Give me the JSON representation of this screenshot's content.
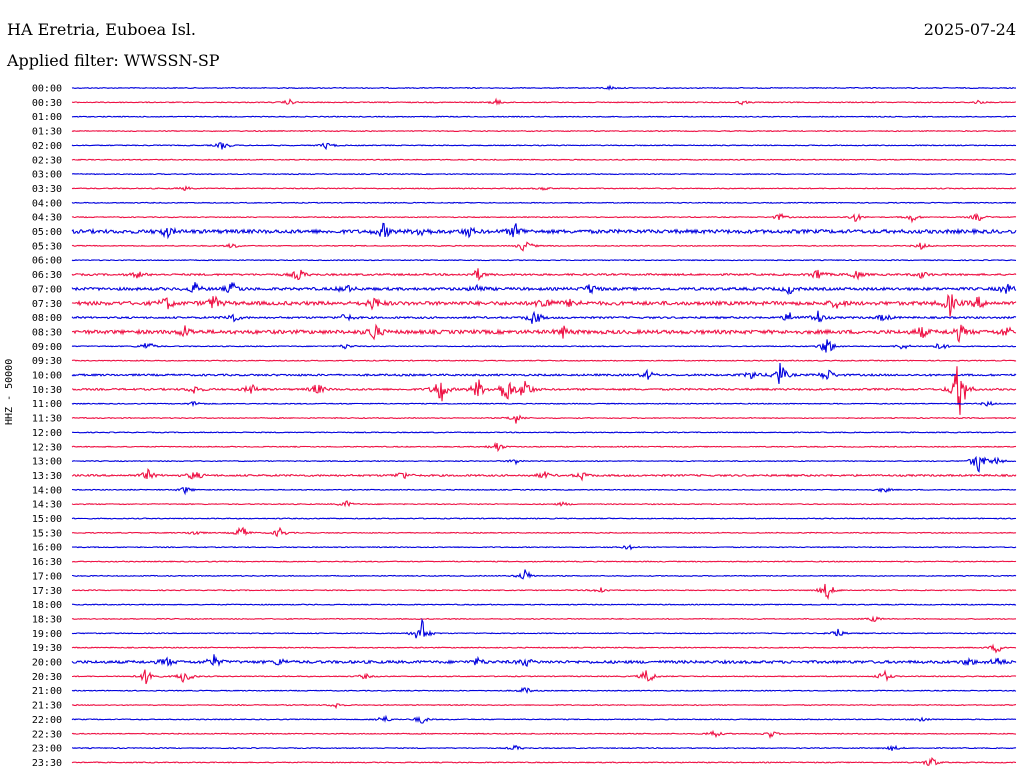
{
  "header": {
    "station": "HA Eretria, Euboea Isl.",
    "date": "2025-07-24",
    "filter_label": "Applied filter: WWSSN-SP"
  },
  "colors": {
    "even_row": "#0000dd",
    "odd_row": "#ee1144"
  },
  "chart_data": {
    "type": "line",
    "title": "HA Eretria, Euboea Isl.",
    "ylabel": "HHZ - 50000",
    "rows": [
      {
        "time": "00:00",
        "events": [
          {
            "t": 0.57,
            "a": 2
          }
        ]
      },
      {
        "time": "00:30",
        "events": [
          {
            "t": 0.23,
            "a": 3
          },
          {
            "t": 0.45,
            "a": 3
          },
          {
            "t": 0.71,
            "a": 2
          },
          {
            "t": 0.96,
            "a": 2
          }
        ]
      },
      {
        "time": "01:00",
        "events": []
      },
      {
        "time": "01:30",
        "events": []
      },
      {
        "time": "02:00",
        "events": [
          {
            "t": 0.16,
            "a": 5
          },
          {
            "t": 0.27,
            "a": 4
          }
        ]
      },
      {
        "time": "02:30",
        "events": []
      },
      {
        "time": "03:00",
        "events": []
      },
      {
        "time": "03:30",
        "events": [
          {
            "t": 0.12,
            "a": 2
          },
          {
            "t": 0.5,
            "a": 2
          }
        ]
      },
      {
        "time": "04:00",
        "events": []
      },
      {
        "time": "04:30",
        "events": [
          {
            "t": 0.75,
            "a": 4
          },
          {
            "t": 0.83,
            "a": 5
          },
          {
            "t": 0.89,
            "a": 5
          },
          {
            "t": 0.96,
            "a": 5
          }
        ]
      },
      {
        "time": "05:00",
        "noise": 4,
        "events": [
          {
            "t": 0.1,
            "a": 6
          },
          {
            "t": 0.33,
            "a": 8
          },
          {
            "t": 0.37,
            "a": 6
          },
          {
            "t": 0.42,
            "a": 5
          },
          {
            "t": 0.47,
            "a": 8
          }
        ]
      },
      {
        "time": "05:30",
        "events": [
          {
            "t": 0.17,
            "a": 3
          },
          {
            "t": 0.48,
            "a": 8
          },
          {
            "t": 0.9,
            "a": 4
          }
        ]
      },
      {
        "time": "06:00",
        "events": []
      },
      {
        "time": "06:30",
        "noise": 2,
        "events": [
          {
            "t": 0.07,
            "a": 4
          },
          {
            "t": 0.24,
            "a": 7
          },
          {
            "t": 0.43,
            "a": 6
          },
          {
            "t": 0.79,
            "a": 7
          },
          {
            "t": 0.83,
            "a": 6
          },
          {
            "t": 0.9,
            "a": 4
          }
        ]
      },
      {
        "time": "07:00",
        "noise": 3,
        "events": [
          {
            "t": 0.13,
            "a": 6
          },
          {
            "t": 0.17,
            "a": 7
          },
          {
            "t": 0.29,
            "a": 5
          },
          {
            "t": 0.43,
            "a": 5
          },
          {
            "t": 0.55,
            "a": 6
          },
          {
            "t": 0.76,
            "a": 5
          },
          {
            "t": 0.99,
            "a": 6
          }
        ]
      },
      {
        "time": "07:30",
        "noise": 4,
        "events": [
          {
            "t": 0.1,
            "a": 7
          },
          {
            "t": 0.15,
            "a": 8
          },
          {
            "t": 0.32,
            "a": 7
          },
          {
            "t": 0.5,
            "a": 9
          },
          {
            "t": 0.53,
            "a": 5
          },
          {
            "t": 0.81,
            "a": 5
          },
          {
            "t": 0.93,
            "a": 12
          },
          {
            "t": 0.96,
            "a": 6
          }
        ]
      },
      {
        "time": "08:00",
        "noise": 2,
        "events": [
          {
            "t": 0.17,
            "a": 6
          },
          {
            "t": 0.29,
            "a": 5
          },
          {
            "t": 0.49,
            "a": 10
          },
          {
            "t": 0.76,
            "a": 6
          },
          {
            "t": 0.79,
            "a": 8
          },
          {
            "t": 0.86,
            "a": 5
          }
        ]
      },
      {
        "time": "08:30",
        "noise": 4,
        "events": [
          {
            "t": 0.12,
            "a": 6
          },
          {
            "t": 0.32,
            "a": 10
          },
          {
            "t": 0.52,
            "a": 6
          },
          {
            "t": 0.9,
            "a": 6
          },
          {
            "t": 0.94,
            "a": 9
          },
          {
            "t": 0.99,
            "a": 6
          }
        ]
      },
      {
        "time": "09:00",
        "events": [
          {
            "t": 0.08,
            "a": 6
          },
          {
            "t": 0.29,
            "a": 3
          },
          {
            "t": 0.8,
            "a": 12
          },
          {
            "t": 0.88,
            "a": 4
          },
          {
            "t": 0.92,
            "a": 5
          }
        ]
      },
      {
        "time": "09:30",
        "events": []
      },
      {
        "time": "10:00",
        "noise": 2,
        "events": [
          {
            "t": 0.61,
            "a": 5
          },
          {
            "t": 0.72,
            "a": 5
          },
          {
            "t": 0.75,
            "a": 14
          },
          {
            "t": 0.8,
            "a": 8
          }
        ]
      },
      {
        "time": "10:30",
        "noise": 2,
        "events": [
          {
            "t": 0.13,
            "a": 5
          },
          {
            "t": 0.19,
            "a": 6
          },
          {
            "t": 0.26,
            "a": 7
          },
          {
            "t": 0.39,
            "a": 18
          },
          {
            "t": 0.43,
            "a": 12
          },
          {
            "t": 0.46,
            "a": 18
          },
          {
            "t": 0.48,
            "a": 13
          },
          {
            "t": 0.94,
            "a": 40
          }
        ]
      },
      {
        "time": "11:00",
        "events": [
          {
            "t": 0.13,
            "a": 3
          },
          {
            "t": 0.97,
            "a": 3
          }
        ]
      },
      {
        "time": "11:30",
        "events": [
          {
            "t": 0.47,
            "a": 6
          }
        ]
      },
      {
        "time": "12:00",
        "events": []
      },
      {
        "time": "12:30",
        "events": [
          {
            "t": 0.45,
            "a": 6
          }
        ]
      },
      {
        "time": "13:00",
        "events": [
          {
            "t": 0.47,
            "a": 3
          },
          {
            "t": 0.96,
            "a": 14
          },
          {
            "t": 0.98,
            "a": 4
          }
        ]
      },
      {
        "time": "13:30",
        "noise": 2,
        "events": [
          {
            "t": 0.08,
            "a": 6
          },
          {
            "t": 0.13,
            "a": 6
          },
          {
            "t": 0.35,
            "a": 5
          },
          {
            "t": 0.5,
            "a": 4
          },
          {
            "t": 0.54,
            "a": 4
          }
        ]
      },
      {
        "time": "14:00",
        "events": [
          {
            "t": 0.12,
            "a": 4
          },
          {
            "t": 0.86,
            "a": 3
          }
        ]
      },
      {
        "time": "14:30",
        "events": [
          {
            "t": 0.29,
            "a": 4
          },
          {
            "t": 0.52,
            "a": 2
          }
        ]
      },
      {
        "time": "15:00",
        "events": []
      },
      {
        "time": "15:30",
        "events": [
          {
            "t": 0.13,
            "a": 3
          },
          {
            "t": 0.18,
            "a": 8
          },
          {
            "t": 0.22,
            "a": 6
          }
        ]
      },
      {
        "time": "16:00",
        "events": [
          {
            "t": 0.59,
            "a": 3
          }
        ]
      },
      {
        "time": "16:30",
        "events": []
      },
      {
        "time": "17:00",
        "events": [
          {
            "t": 0.48,
            "a": 7
          }
        ]
      },
      {
        "time": "17:30",
        "events": [
          {
            "t": 0.56,
            "a": 4
          },
          {
            "t": 0.8,
            "a": 11
          }
        ]
      },
      {
        "time": "18:00",
        "events": []
      },
      {
        "time": "18:30",
        "events": [
          {
            "t": 0.85,
            "a": 3
          }
        ]
      },
      {
        "time": "19:00",
        "events": [
          {
            "t": 0.37,
            "a": 18
          },
          {
            "t": 0.81,
            "a": 6
          }
        ]
      },
      {
        "time": "19:30",
        "events": [
          {
            "t": 0.98,
            "a": 6
          }
        ]
      },
      {
        "time": "20:00",
        "noise": 3,
        "events": [
          {
            "t": 0.1,
            "a": 5
          },
          {
            "t": 0.15,
            "a": 7
          },
          {
            "t": 0.22,
            "a": 4
          },
          {
            "t": 0.43,
            "a": 4
          },
          {
            "t": 0.48,
            "a": 5
          },
          {
            "t": 0.95,
            "a": 4
          },
          {
            "t": 0.98,
            "a": 5
          }
        ]
      },
      {
        "time": "20:30",
        "events": [
          {
            "t": 0.08,
            "a": 12
          },
          {
            "t": 0.12,
            "a": 10
          },
          {
            "t": 0.31,
            "a": 3
          },
          {
            "t": 0.61,
            "a": 10
          },
          {
            "t": 0.86,
            "a": 7
          }
        ]
      },
      {
        "time": "21:00",
        "events": [
          {
            "t": 0.48,
            "a": 4
          }
        ]
      },
      {
        "time": "21:30",
        "events": [
          {
            "t": 0.28,
            "a": 3
          }
        ]
      },
      {
        "time": "22:00",
        "events": [
          {
            "t": 0.33,
            "a": 5
          },
          {
            "t": 0.37,
            "a": 5
          },
          {
            "t": 0.9,
            "a": 3
          }
        ]
      },
      {
        "time": "22:30",
        "events": [
          {
            "t": 0.68,
            "a": 5
          },
          {
            "t": 0.74,
            "a": 4
          }
        ]
      },
      {
        "time": "23:00",
        "events": [
          {
            "t": 0.47,
            "a": 3
          },
          {
            "t": 0.87,
            "a": 3
          }
        ]
      },
      {
        "time": "23:30",
        "events": [
          {
            "t": 0.91,
            "a": 7
          }
        ]
      }
    ]
  }
}
